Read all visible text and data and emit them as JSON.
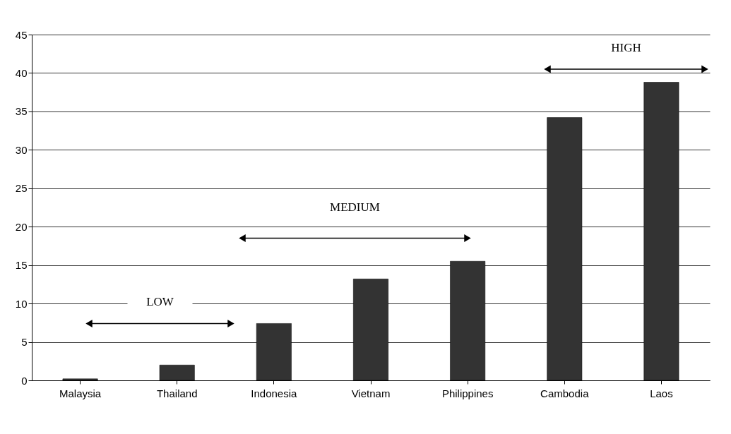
{
  "chart_data": {
    "type": "bar",
    "categories": [
      "Malaysia",
      "Thailand",
      "Indonesia",
      "Vietnam",
      "Philippines",
      "Cambodia",
      "Laos"
    ],
    "values": [
      0.2,
      2.0,
      7.4,
      13.2,
      15.5,
      34.2,
      38.8
    ],
    "color": "#333333",
    "ylim": [
      0,
      45
    ],
    "yticks": [
      0,
      5,
      10,
      15,
      20,
      25,
      30,
      35,
      40,
      45
    ],
    "grid": "y",
    "annotations": [
      "LOW",
      "MEDIUM",
      "HIGH"
    ]
  }
}
